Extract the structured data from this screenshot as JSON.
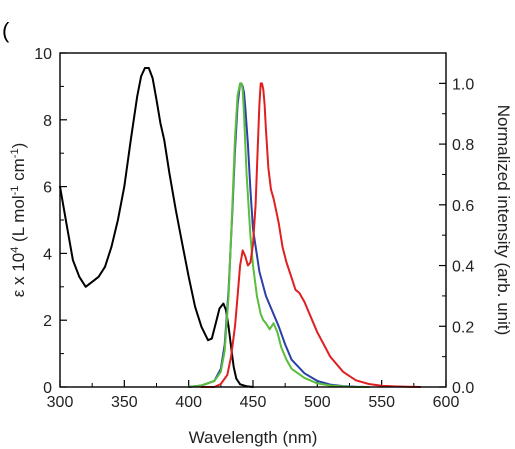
{
  "panel_label": "(",
  "chart_data": {
    "type": "line",
    "title": "",
    "xlabel": "Wavelength (nm)",
    "ylabel_left": {
      "symbol": "ε",
      "mid1": " x 10",
      "exp1": "4",
      "mid2": " (L mol",
      "exp2": "-1",
      "mid3": " cm",
      "exp3": "-1",
      "end": ")"
    },
    "ylabel_right": "Normalized intensity (arb. unit)",
    "xlim": [
      300,
      600
    ],
    "ylim_left": [
      0,
      10
    ],
    "ylim_right": [
      0,
      1.1
    ],
    "x_ticks": [
      300,
      350,
      400,
      450,
      500,
      550,
      600
    ],
    "x_tick_labels": [
      "300",
      "350",
      "400",
      "450",
      "500",
      "550",
      "600"
    ],
    "y_left_ticks": [
      0,
      2,
      4,
      6,
      8,
      10
    ],
    "y_left_tick_labels": [
      "0",
      "2",
      "4",
      "6",
      "8",
      "10"
    ],
    "y_right_ticks": [
      0,
      0.2,
      0.4,
      0.6,
      0.8,
      1.0
    ],
    "y_right_tick_labels": [
      "0.0",
      "0.2",
      "0.4",
      "0.6",
      "0.8",
      "1.0"
    ],
    "grid": false,
    "series": [
      {
        "axis": "left",
        "color": "#000000",
        "x": [
          300,
          305,
          310,
          315,
          320,
          325,
          330,
          335,
          340,
          345,
          350,
          355,
          360,
          363,
          366,
          369,
          372,
          375,
          378,
          381,
          385,
          390,
          395,
          400,
          405,
          410,
          415,
          418,
          421,
          424,
          427,
          429,
          431,
          433,
          435,
          437,
          440,
          445,
          450
        ],
        "y": [
          6.0,
          4.9,
          3.8,
          3.3,
          3.0,
          3.15,
          3.3,
          3.6,
          4.2,
          5.0,
          6.0,
          7.4,
          8.7,
          9.3,
          9.55,
          9.55,
          9.25,
          8.6,
          7.9,
          7.4,
          6.4,
          5.3,
          4.3,
          3.3,
          2.4,
          1.8,
          1.4,
          1.45,
          1.9,
          2.35,
          2.5,
          2.3,
          1.8,
          1.2,
          0.6,
          0.25,
          0.08,
          0.02,
          0.0
        ]
      },
      {
        "axis": "right",
        "color": "#2b3fa8",
        "x": [
          400,
          410,
          420,
          425,
          428,
          431,
          434,
          436,
          438,
          440,
          441,
          442,
          443,
          444,
          446,
          448,
          450,
          455,
          460,
          465,
          470,
          475,
          480,
          490,
          500,
          510,
          520,
          530,
          540
        ],
        "y": [
          0.0,
          0.005,
          0.02,
          0.06,
          0.14,
          0.32,
          0.58,
          0.78,
          0.93,
          1.0,
          1.0,
          0.99,
          0.97,
          0.92,
          0.8,
          0.65,
          0.52,
          0.38,
          0.3,
          0.25,
          0.2,
          0.14,
          0.09,
          0.045,
          0.02,
          0.008,
          0.003,
          0.001,
          0.0
        ]
      },
      {
        "axis": "right",
        "color": "#5bbd3c",
        "x": [
          400,
          410,
          420,
          425,
          428,
          431,
          434,
          436,
          438,
          440,
          441,
          442,
          443,
          445,
          448,
          450,
          453,
          456,
          458,
          460,
          463,
          466,
          469,
          472,
          476,
          480,
          490,
          500,
          510,
          520,
          530,
          540
        ],
        "y": [
          0.0,
          0.005,
          0.02,
          0.05,
          0.12,
          0.3,
          0.6,
          0.82,
          0.96,
          1.0,
          1.0,
          0.98,
          0.9,
          0.7,
          0.5,
          0.4,
          0.3,
          0.24,
          0.22,
          0.21,
          0.19,
          0.21,
          0.18,
          0.13,
          0.09,
          0.06,
          0.03,
          0.012,
          0.005,
          0.002,
          0.0,
          0.0
        ]
      },
      {
        "axis": "right",
        "color": "#e02020",
        "x": [
          410,
          420,
          425,
          430,
          433,
          436,
          438,
          440,
          442,
          444,
          446,
          448,
          450,
          452,
          454,
          455,
          456,
          457,
          458,
          459,
          460,
          462,
          464,
          466,
          468,
          470,
          473,
          476,
          480,
          483,
          486,
          490,
          495,
          500,
          505,
          510,
          520,
          530,
          540,
          550,
          560,
          570,
          580
        ],
        "y": [
          0.0,
          0.0,
          0.01,
          0.04,
          0.1,
          0.2,
          0.3,
          0.4,
          0.45,
          0.43,
          0.4,
          0.41,
          0.47,
          0.6,
          0.82,
          0.93,
          1.0,
          1.0,
          0.98,
          0.93,
          0.85,
          0.72,
          0.65,
          0.62,
          0.58,
          0.54,
          0.46,
          0.41,
          0.36,
          0.32,
          0.31,
          0.28,
          0.23,
          0.18,
          0.14,
          0.1,
          0.05,
          0.022,
          0.01,
          0.004,
          0.002,
          0.001,
          0.0
        ]
      }
    ]
  }
}
